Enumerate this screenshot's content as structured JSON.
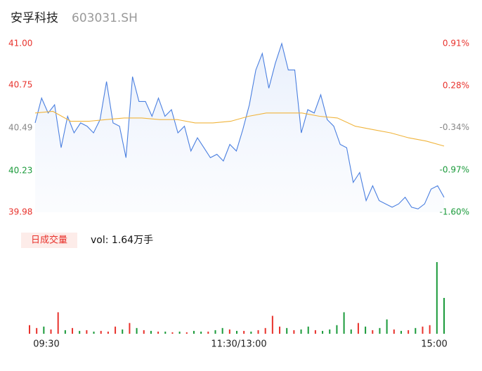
{
  "chart_data": {
    "type": "intraday",
    "title": "安孚科技",
    "subtitle": "603031.SH",
    "ylim": [
      39.98,
      41.0
    ],
    "yticks": [
      41.0,
      40.75,
      40.49,
      40.23,
      39.98
    ],
    "ytick_labels": [
      "41.00",
      "40.75",
      "40.49",
      "40.23",
      "39.98"
    ],
    "ytick_colors": [
      "#e8322c",
      "#e8322c",
      "#888888",
      "#1a9a3a",
      "#e8322c"
    ],
    "y2lim": [
      -1.6,
      0.91
    ],
    "y2ticks": [
      {
        "value": 0.91,
        "label": "0.91%"
      },
      {
        "value": 0.28,
        "label": "0.28%"
      },
      {
        "value": -0.34,
        "label": "-0.34%"
      },
      {
        "value": -0.97,
        "label": "-0.97%"
      },
      {
        "value": -1.6,
        "label": "-1.60%"
      }
    ],
    "y2tick_colors": [
      "#e8322c",
      "#e8322c",
      "#888888",
      "#1a9a3a",
      "#1a9a3a"
    ],
    "xtick_labels": [
      "09:30",
      "11:30/13:00",
      "15:00"
    ],
    "series": [
      {
        "name": "price",
        "color": "#4a7fe0",
        "values": [
          40.52,
          40.67,
          40.58,
          40.63,
          40.37,
          40.56,
          40.46,
          40.52,
          40.5,
          40.46,
          40.54,
          40.77,
          40.52,
          40.5,
          40.31,
          40.8,
          40.65,
          40.65,
          40.56,
          40.67,
          40.56,
          40.6,
          40.46,
          40.5,
          40.35,
          40.43,
          40.37,
          40.31,
          40.33,
          40.29,
          40.39,
          40.35,
          40.48,
          40.63,
          40.84,
          40.94,
          40.73,
          40.88,
          41.0,
          40.84,
          40.84,
          40.46,
          40.6,
          40.58,
          40.69,
          40.54,
          40.5,
          40.39,
          40.37,
          40.16,
          40.22,
          40.05,
          40.14,
          40.05,
          40.03,
          40.01,
          40.03,
          40.07,
          40.01,
          40.0,
          40.03,
          40.12,
          40.14,
          40.07
        ]
      },
      {
        "name": "average",
        "color": "#f0b43c",
        "values": [
          40.58,
          40.59,
          40.53,
          40.53,
          40.54,
          40.55,
          40.55,
          40.54,
          40.54,
          40.52,
          40.52,
          40.53,
          40.56,
          40.58,
          40.58,
          40.58,
          40.56,
          40.55,
          40.5,
          40.48,
          40.46,
          40.43,
          40.41,
          40.38
        ]
      }
    ],
    "volume_label": "日成交量",
    "volume_text": "vol: 1.64万手",
    "volume": [
      12,
      8,
      10,
      6,
      30,
      5,
      8,
      4,
      5,
      3,
      4,
      3,
      10,
      6,
      15,
      8,
      5,
      4,
      3,
      3,
      2,
      3,
      2,
      4,
      3,
      3,
      5,
      8,
      6,
      4,
      4,
      3,
      5,
      8,
      25,
      10,
      8,
      5,
      6,
      10,
      5,
      4,
      6,
      12,
      30,
      6,
      15,
      10,
      5,
      8,
      20,
      6,
      4,
      5,
      8,
      10,
      12,
      100,
      50
    ],
    "volume_colors": [
      "#e8322c",
      "#e8322c",
      "#1a9a3a",
      "#e8322c",
      "#e8322c",
      "#1a9a3a",
      "#e8322c",
      "#1a9a3a",
      "#e8322c",
      "#1a9a3a",
      "#e8322c",
      "#e8322c",
      "#e8322c",
      "#1a9a3a",
      "#e8322c",
      "#1a9a3a",
      "#e8322c",
      "#1a9a3a",
      "#e8322c",
      "#1a9a3a",
      "#e8322c",
      "#1a9a3a",
      "#e8322c",
      "#1a9a3a",
      "#1a9a3a",
      "#e8322c",
      "#1a9a3a",
      "#1a9a3a",
      "#e8322c",
      "#1a9a3a",
      "#e8322c",
      "#1a9a3a",
      "#e8322c",
      "#e8322c",
      "#e8322c",
      "#e8322c",
      "#1a9a3a",
      "#e8322c",
      "#1a9a3a",
      "#1a9a3a",
      "#e8322c",
      "#1a9a3a",
      "#1a9a3a",
      "#1a9a3a",
      "#1a9a3a",
      "#1a9a3a",
      "#e8322c",
      "#1a9a3a",
      "#e8322c",
      "#1a9a3a",
      "#1a9a3a",
      "#e8322c",
      "#1a9a3a",
      "#e8322c",
      "#1a9a3a",
      "#e8322c",
      "#e8322c",
      "#1a9a3a",
      "#1a9a3a"
    ]
  }
}
